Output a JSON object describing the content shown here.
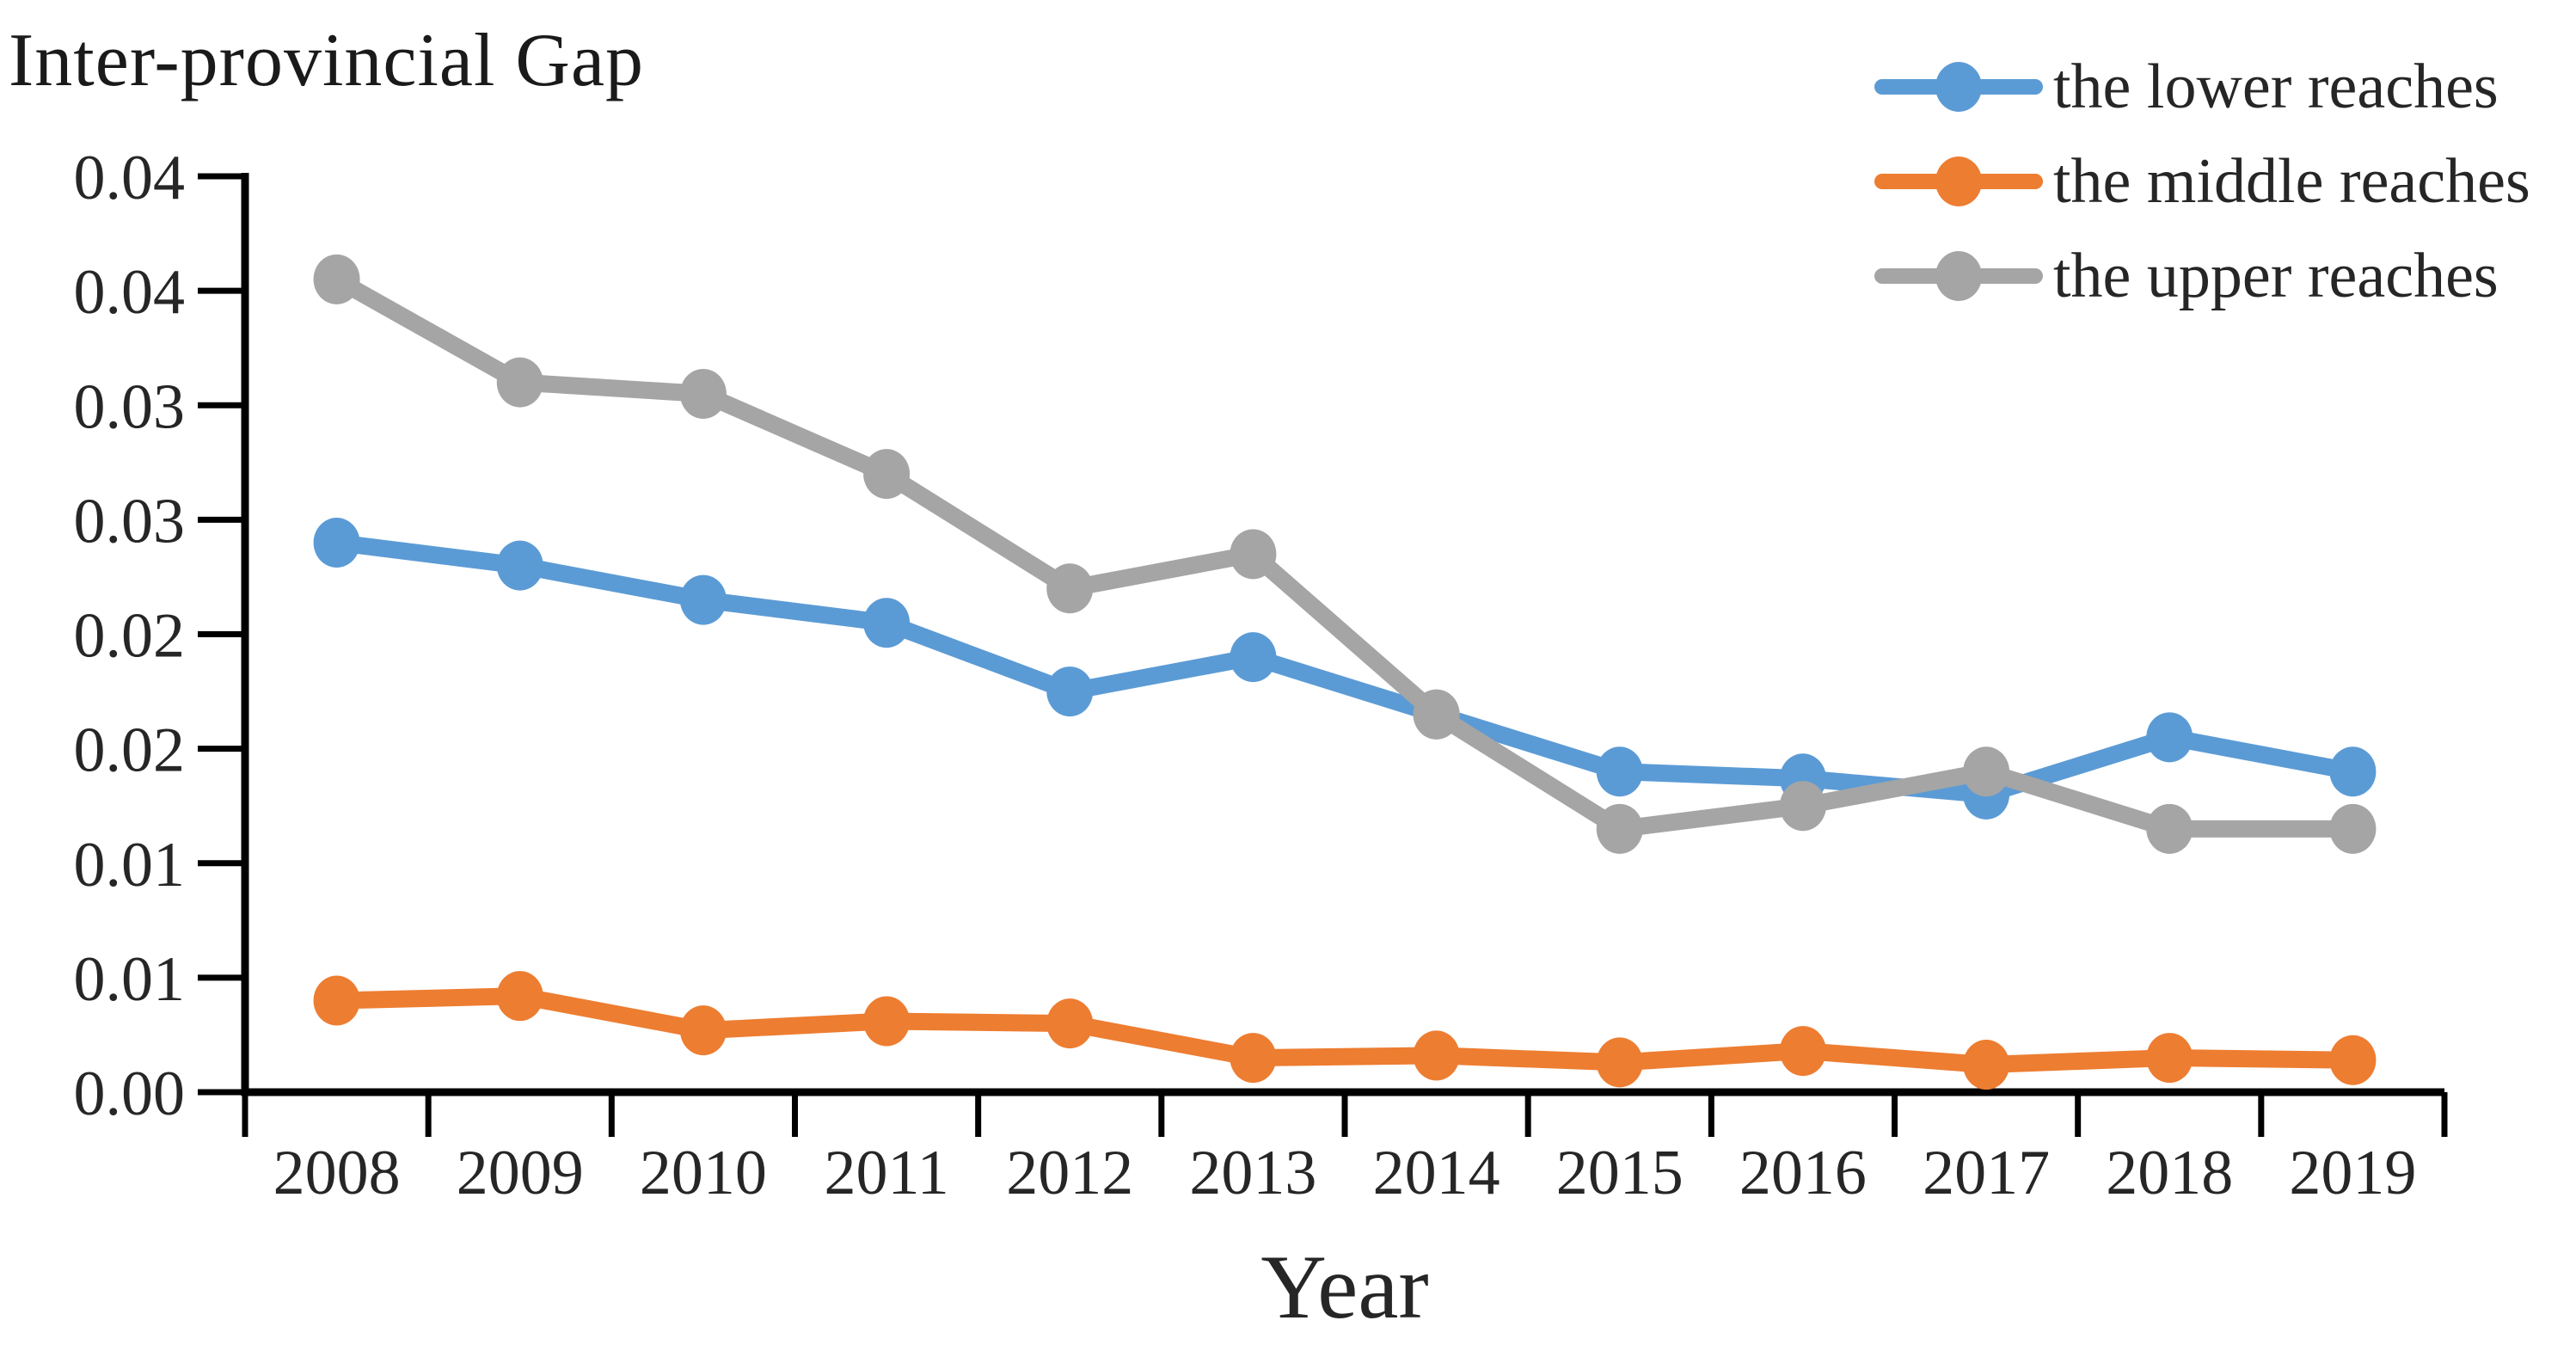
{
  "title": "Inter-provincial Gap",
  "x_axis_title": "Year",
  "legend": [
    {
      "label": "the lower reaches",
      "color": "#5B9BD5"
    },
    {
      "label": "the middle reaches",
      "color": "#ED7D31"
    },
    {
      "label": "the upper reaches",
      "color": "#A5A5A5"
    }
  ],
  "colors": {
    "axis": "#000000",
    "tick_label": "#262626",
    "background": "#ffffff"
  },
  "chart_data": {
    "type": "line",
    "title": "Inter-provincial Gap",
    "xlabel": "Year",
    "ylabel": "",
    "x": [
      2008,
      2009,
      2010,
      2011,
      2012,
      2013,
      2014,
      2015,
      2016,
      2017,
      2018,
      2019
    ],
    "series": [
      {
        "name": "the lower reaches",
        "color": "#5B9BD5",
        "values": [
          0.024,
          0.023,
          0.0215,
          0.0205,
          0.0175,
          0.019,
          0.0165,
          0.014,
          0.0137,
          0.013,
          0.0155,
          0.014
        ]
      },
      {
        "name": "the middle reaches",
        "color": "#ED7D31",
        "values": [
          0.004,
          0.0042,
          0.0027,
          0.0031,
          0.003,
          0.0015,
          0.0016,
          0.0013,
          0.0018,
          0.0012,
          0.0015,
          0.0014
        ]
      },
      {
        "name": "the upper reaches",
        "color": "#A5A5A5",
        "values": [
          0.0355,
          0.031,
          0.0305,
          0.027,
          0.022,
          0.0235,
          0.0165,
          0.0115,
          0.0125,
          0.014,
          0.0115,
          0.0115
        ]
      }
    ],
    "ylim": [
      0,
      0.04
    ],
    "y_tick_step": 0.005,
    "y_tick_labels_bottom_to_top": [
      "0.00",
      "0.01",
      "0.01",
      "0.02",
      "0.02",
      "0.03",
      "0.03",
      "0.04",
      "0.04"
    ],
    "grid": false,
    "legend_position": "top-right",
    "x_tick_style": "between-categories"
  }
}
